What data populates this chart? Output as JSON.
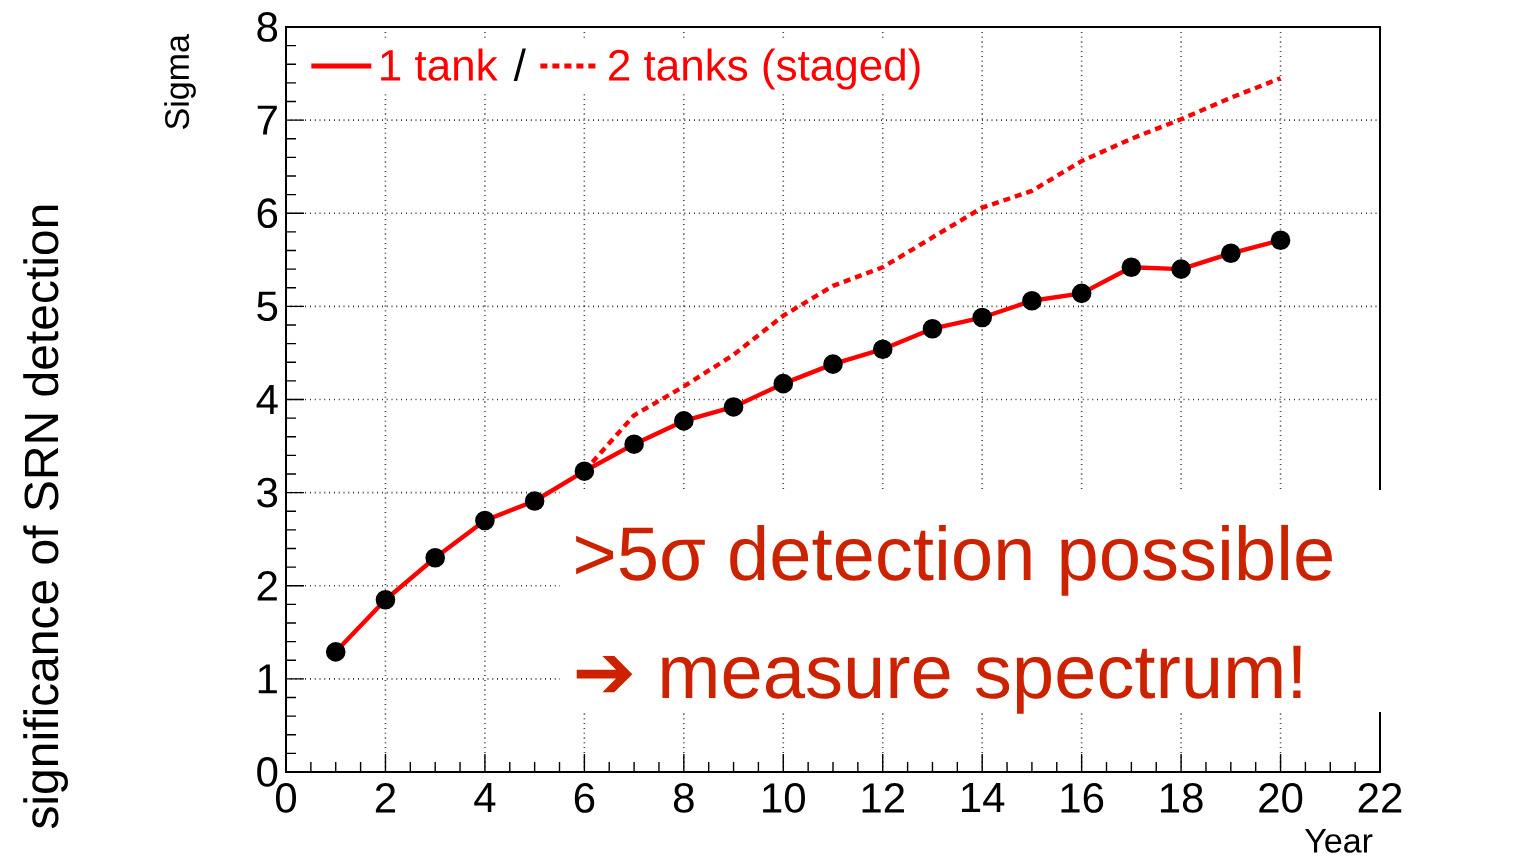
{
  "chart_data": {
    "type": "line",
    "xlabel": "Year",
    "ylabel": "Sigma",
    "x": [
      1,
      2,
      3,
      4,
      5,
      6,
      7,
      8,
      9,
      10,
      11,
      12,
      13,
      14,
      15,
      16,
      17,
      18,
      19,
      20
    ],
    "series": [
      {
        "name": "1 tank",
        "color": "#ff0000",
        "marker": "circle",
        "line_style": "solid",
        "values": [
          1.29,
          1.85,
          2.3,
          2.7,
          2.91,
          3.23,
          3.52,
          3.77,
          3.92,
          4.17,
          4.38,
          4.54,
          4.76,
          4.88,
          5.06,
          5.14,
          5.42,
          5.4,
          5.57,
          5.71
        ]
      },
      {
        "name": "2 tanks (staged)",
        "color": "#ff0000",
        "marker": "none",
        "line_style": "dashed",
        "x": [
          6,
          7,
          8,
          9,
          10,
          11,
          12,
          13,
          14,
          15,
          16,
          17,
          18,
          19,
          20
        ],
        "values": [
          3.23,
          3.83,
          4.14,
          4.48,
          4.9,
          5.22,
          5.42,
          5.74,
          6.06,
          6.24,
          6.56,
          6.8,
          7.01,
          7.24,
          7.45
        ]
      }
    ],
    "xlim": [
      0,
      22
    ],
    "xticks": [
      0,
      2,
      4,
      6,
      8,
      10,
      12,
      14,
      16,
      18,
      20,
      22
    ],
    "ylim": [
      0,
      8
    ],
    "yticks": [
      0,
      1,
      2,
      3,
      4,
      5,
      6,
      7,
      8
    ],
    "grid": true,
    "legend": "top left",
    "annotations": [
      "significance of SRN detection",
      "/",
      ">5σ detection possible",
      "➔ measure spectrum!"
    ]
  }
}
